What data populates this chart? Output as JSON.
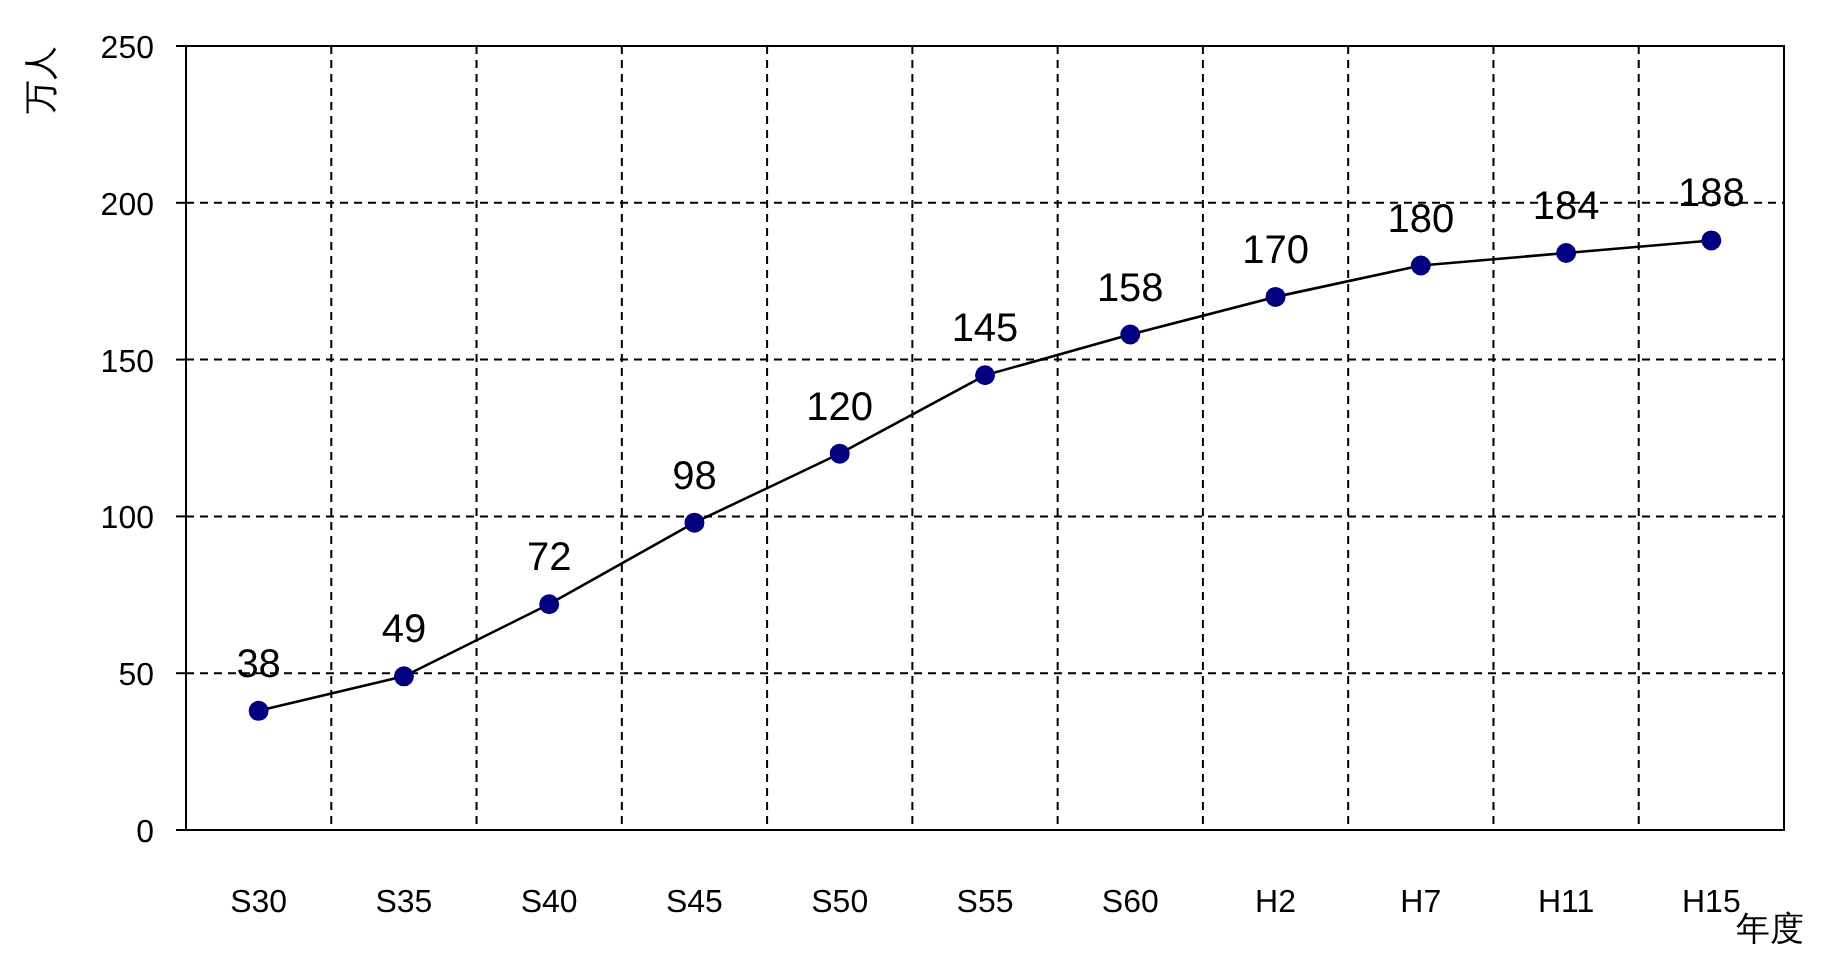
{
  "chart_data": {
    "type": "line",
    "ylabel": "万人",
    "xlabel": "年度",
    "categories": [
      "S30",
      "S35",
      "S40",
      "S45",
      "S50",
      "S55",
      "S60",
      "H2",
      "H7",
      "H11",
      "H15"
    ],
    "series": [
      {
        "color": "#000080",
        "values": [
          38,
          49,
          72,
          98,
          120,
          145,
          158,
          170,
          180,
          184,
          188
        ]
      }
    ],
    "ylim": [
      0,
      250
    ],
    "yticks": [
      0,
      50,
      100,
      150,
      200,
      250
    ],
    "grid": true,
    "marker": "circle",
    "data_labels": true
  }
}
